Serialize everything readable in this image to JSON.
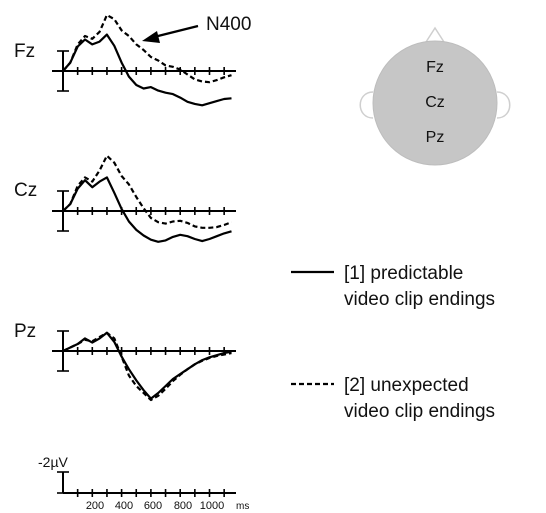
{
  "chart_data": {
    "type": "line",
    "x_unit": "ms",
    "x_ticks": [
      200,
      400,
      600,
      800,
      1000
    ],
    "xlim": [
      -100,
      1150
    ],
    "ylim": [
      -9,
      4
    ],
    "y_inverted": true,
    "scale_label": "-2µV",
    "scale_value": -2,
    "legend_placement": "right",
    "annotation": {
      "text": "N400",
      "target_panel": "Fz",
      "target_x": 550
    },
    "series": [
      {
        "name": "[1] predictable video clip endings",
        "style": "solid"
      },
      {
        "name": "[2] unexpected video clip endings",
        "style": "dashed"
      }
    ],
    "panels": [
      {
        "electrode": "Fz",
        "x": [
          0,
          50,
          100,
          150,
          200,
          250,
          300,
          350,
          400,
          450,
          500,
          550,
          600,
          650,
          700,
          750,
          800,
          850,
          900,
          950,
          1000,
          1050,
          1100,
          1150
        ],
        "series_values": [
          [
            0,
            -1.2,
            -3.5,
            -4.5,
            -3.8,
            -4.2,
            -5.2,
            -3.6,
            -1.2,
            0.8,
            2.0,
            2.5,
            2.3,
            2.8,
            3.1,
            3.3,
            3.8,
            4.4,
            4.7,
            4.9,
            4.6,
            4.3,
            4.0,
            3.9
          ],
          [
            0,
            -1.2,
            -3.8,
            -5.0,
            -4.6,
            -5.6,
            -8.0,
            -7.4,
            -5.8,
            -5.0,
            -3.8,
            -3.0,
            -2.0,
            -1.5,
            -0.8,
            -0.6,
            -0.2,
            0.5,
            1.2,
            1.5,
            1.6,
            1.3,
            0.9,
            0.6
          ]
        ]
      },
      {
        "electrode": "Cz",
        "x": [
          0,
          50,
          100,
          150,
          200,
          250,
          300,
          350,
          400,
          450,
          500,
          550,
          600,
          650,
          700,
          750,
          800,
          850,
          900,
          950,
          1000,
          1050,
          1100,
          1150
        ],
        "series_values": [
          [
            0,
            -1.0,
            -3.2,
            -4.4,
            -3.4,
            -4.2,
            -4.8,
            -2.6,
            -0.3,
            1.5,
            2.7,
            3.5,
            4.1,
            4.4,
            4.2,
            3.7,
            3.4,
            3.6,
            4.0,
            4.3,
            4.0,
            3.6,
            3.2,
            2.9
          ],
          [
            0,
            -1.0,
            -3.6,
            -4.8,
            -4.2,
            -5.8,
            -7.9,
            -6.9,
            -5.0,
            -3.8,
            -2.0,
            -0.4,
            1.0,
            1.6,
            1.8,
            1.5,
            1.4,
            1.7,
            2.2,
            2.4,
            2.4,
            2.3,
            2.0,
            1.6
          ]
        ]
      },
      {
        "electrode": "Pz",
        "x": [
          0,
          50,
          100,
          150,
          200,
          250,
          300,
          350,
          400,
          450,
          500,
          550,
          600,
          650,
          700,
          750,
          800,
          850,
          900,
          950,
          1000,
          1050,
          1100,
          1150
        ],
        "series_values": [
          [
            0,
            -0.5,
            -1.0,
            -1.8,
            -1.2,
            -1.8,
            -2.6,
            -1.3,
            0.8,
            2.6,
            4.2,
            5.6,
            6.8,
            6.0,
            5.0,
            4.0,
            3.3,
            2.6,
            1.9,
            1.3,
            0.9,
            0.6,
            0.3,
            0.1
          ],
          [
            0,
            -0.5,
            -1.0,
            -1.6,
            -1.4,
            -2.0,
            -2.6,
            -1.8,
            0.8,
            3.5,
            5.0,
            6.0,
            7.0,
            6.4,
            5.4,
            4.3,
            3.4,
            2.6,
            1.9,
            1.4,
            1.0,
            0.7,
            0.5,
            0.3
          ]
        ]
      }
    ],
    "head_map": {
      "electrodes": [
        "Fz",
        "Cz",
        "Pz"
      ]
    }
  }
}
